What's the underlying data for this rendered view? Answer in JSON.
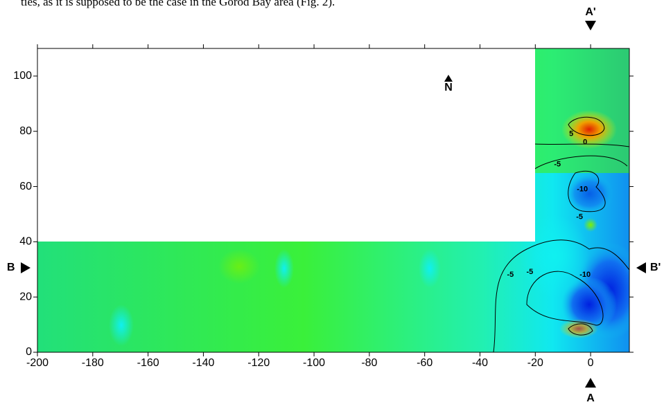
{
  "caption": "ties, as it is supposed to be the case in the Gorod Bay area (Fig. 2).",
  "chart_data": {
    "type": "contour",
    "xlim": [
      -200,
      14
    ],
    "ylim": [
      0,
      110
    ],
    "xticks": [
      -200,
      -180,
      -160,
      -140,
      -120,
      -100,
      -80,
      -60,
      -40,
      -20,
      0
    ],
    "yticks": [
      0,
      20,
      40,
      60,
      80,
      100
    ],
    "annotations": [
      {
        "text": "5",
        "x": -7,
        "y": 79
      },
      {
        "text": "0",
        "x": -2,
        "y": 76
      },
      {
        "text": "-5",
        "x": -12,
        "y": 68
      },
      {
        "text": "-10",
        "x": -3,
        "y": 59
      },
      {
        "text": "-5",
        "x": -4,
        "y": 49
      },
      {
        "text": "-5",
        "x": -29,
        "y": 28
      },
      {
        "text": "-5",
        "x": -22,
        "y": 29
      },
      {
        "text": "-10",
        "x": -2,
        "y": 28
      }
    ],
    "profile_labels": {
      "top": "A'",
      "bottom": "A",
      "left": "B",
      "right": "B'"
    },
    "north": "N"
  }
}
